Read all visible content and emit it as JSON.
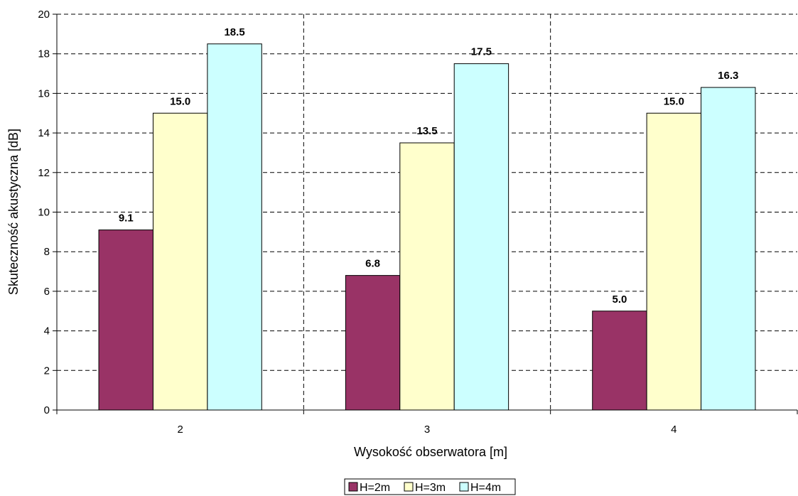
{
  "chart_data": {
    "type": "bar",
    "title": "",
    "xlabel": "Wysokość obserwatora [m]",
    "ylabel": "Skuteczność akustyczna [dB]",
    "categories": [
      "2",
      "3",
      "4"
    ],
    "ylim": [
      0,
      20
    ],
    "yticks": [
      0,
      2,
      4,
      6,
      8,
      10,
      12,
      14,
      16,
      18,
      20
    ],
    "grid": true,
    "grid_style": "dashed",
    "legend_position": "bottom",
    "value_labels": true,
    "series": [
      {
        "name": "H=2m",
        "values": [
          9.1,
          6.8,
          5.0
        ],
        "value_labels": [
          "9.1",
          "6.8",
          "5.0"
        ],
        "color": "#993366"
      },
      {
        "name": "H=3m",
        "values": [
          15.0,
          13.5,
          15.0
        ],
        "value_labels": [
          "15.0",
          "13.5",
          "15.0"
        ],
        "color": "#FFFFCC"
      },
      {
        "name": "H=4m",
        "values": [
          18.5,
          17.5,
          16.3
        ],
        "value_labels": [
          "18.5",
          "17.5",
          "16.3"
        ],
        "color": "#CCFFFF"
      }
    ]
  }
}
